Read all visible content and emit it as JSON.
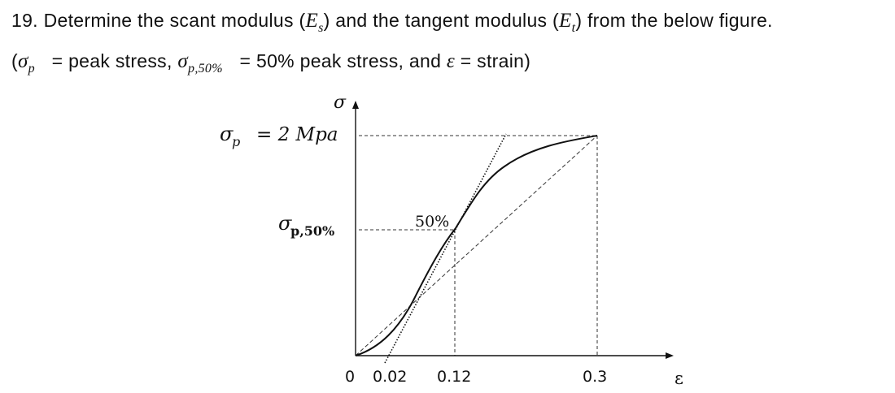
{
  "question": {
    "number": "19.",
    "line1_text": "Determine the scant modulus (",
    "es_symbol": "E",
    "es_sub": "s",
    "line1_mid": ") and the tangent modulus (",
    "et_symbol": "E",
    "et_sub": "t",
    "line1_end": ") from the below figure.",
    "line2_open": "(",
    "sigma_symbol": "σ",
    "sigma_p_sub": "p",
    "eq1": "=",
    "def_peak": "peak stress,",
    "sigma_p50_sub": "p,50%",
    "eq2": "=",
    "def_50": "50% peak stress, and",
    "eps_symbol": "ε",
    "eq3": "=",
    "def_strain": "strain)"
  },
  "figure": {
    "y_axis_label": "σ",
    "x_axis_label": "ε",
    "peak_label_sigma": "σ",
    "peak_label_sub": "p",
    "peak_label_value": "= 2 Mpa",
    "half_label_sigma": "σ",
    "half_label_sub": "p,50%",
    "annotation_50": "50%",
    "x_ticks": [
      "0",
      "0.02",
      "0.12",
      "0.3"
    ]
  },
  "chart_data": {
    "type": "line",
    "title": "",
    "xlabel": "ε",
    "ylabel": "σ",
    "peak_stress": 2,
    "peak_stress_unit": "Mpa",
    "half_peak_stress": 1,
    "x_ticks": [
      0,
      0.02,
      0.12,
      0.3
    ],
    "series": [
      {
        "name": "",
        "style": "solid curve",
        "x": [
          0,
          0.03,
          0.06,
          0.09,
          0.12,
          0.15,
          0.18,
          0.21,
          0.24,
          0.27,
          0.3
        ],
        "y": [
          0,
          0.1,
          0.35,
          0.7,
          1.0,
          1.38,
          1.62,
          1.77,
          1.87,
          1.94,
          2.0
        ]
      },
      {
        "name": "",
        "style": "dotted tangent line",
        "x": [
          0.02,
          0.12,
          0.175
        ],
        "y": [
          0,
          1.0,
          2.0
        ]
      },
      {
        "name": "",
        "style": "dashed secant line",
        "x": [
          0,
          0.3
        ],
        "y": [
          0,
          2.0
        ]
      }
    ],
    "reference_lines": [
      {
        "style": "dashed",
        "from": [
          0,
          2
        ],
        "to": [
          0.3,
          2
        ]
      },
      {
        "style": "dashed",
        "from": [
          0.3,
          2
        ],
        "to": [
          0.3,
          0
        ]
      },
      {
        "style": "dashed",
        "from": [
          0,
          1
        ],
        "to": [
          0.12,
          1
        ]
      },
      {
        "style": "dashed",
        "from": [
          0.12,
          1
        ],
        "to": [
          0.12,
          0
        ]
      }
    ],
    "grid": false,
    "legend": "none"
  }
}
